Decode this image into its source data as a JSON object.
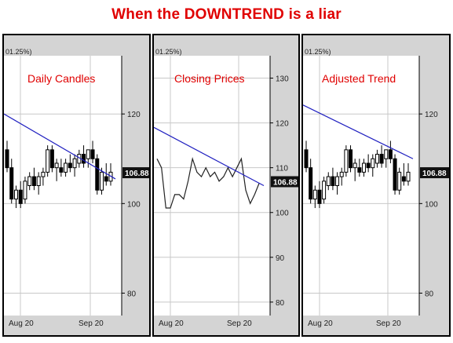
{
  "title": "When the DOWNTREND is a liar",
  "colors": {
    "title": "#e00000",
    "trendline": "#2020c0",
    "badge": "#111111"
  },
  "chart_data": [
    {
      "type": "candlestick",
      "title": "Daily Candles",
      "header": "01.25%)",
      "y_ticks": [
        120,
        100,
        80
      ],
      "ylim": [
        75,
        133
      ],
      "x_ticks": [
        "Aug 20",
        "Sep 20"
      ],
      "last_price": "106.88",
      "trendline": {
        "from": 120,
        "to": 105.5
      },
      "candles": [
        {
          "o": 112,
          "h": 114,
          "l": 107,
          "c": 108
        },
        {
          "o": 108,
          "h": 110,
          "l": 100,
          "c": 101
        },
        {
          "o": 101,
          "h": 104,
          "l": 99,
          "c": 103
        },
        {
          "o": 103,
          "h": 105,
          "l": 99,
          "c": 100
        },
        {
          "o": 101,
          "h": 106,
          "l": 100,
          "c": 105
        },
        {
          "o": 104,
          "h": 107,
          "l": 103,
          "c": 106
        },
        {
          "o": 106,
          "h": 108,
          "l": 103,
          "c": 104
        },
        {
          "o": 104,
          "h": 107,
          "l": 102,
          "c": 106
        },
        {
          "o": 106,
          "h": 108,
          "l": 104,
          "c": 107
        },
        {
          "o": 107,
          "h": 113,
          "l": 106,
          "c": 112
        },
        {
          "o": 112,
          "h": 113,
          "l": 107,
          "c": 108
        },
        {
          "o": 108,
          "h": 110,
          "l": 105,
          "c": 109
        },
        {
          "o": 108,
          "h": 110,
          "l": 106,
          "c": 107
        },
        {
          "o": 107,
          "h": 110,
          "l": 106,
          "c": 109
        },
        {
          "o": 109,
          "h": 111,
          "l": 107,
          "c": 108
        },
        {
          "o": 108,
          "h": 111,
          "l": 106,
          "c": 110
        },
        {
          "o": 109,
          "h": 112,
          "l": 108,
          "c": 111
        },
        {
          "o": 111,
          "h": 113,
          "l": 108,
          "c": 109
        },
        {
          "o": 110,
          "h": 112,
          "l": 108,
          "c": 112
        },
        {
          "o": 112,
          "h": 114,
          "l": 109,
          "c": 110
        },
        {
          "o": 110,
          "h": 111,
          "l": 102,
          "c": 103
        },
        {
          "o": 103,
          "h": 108,
          "l": 102,
          "c": 107
        },
        {
          "o": 106,
          "h": 109,
          "l": 104,
          "c": 105
        },
        {
          "o": 105,
          "h": 109,
          "l": 104,
          "c": 107
        }
      ]
    },
    {
      "type": "line",
      "title": "Closing Prices",
      "header": "01.25%)",
      "y_ticks": [
        130,
        120,
        110,
        100,
        90,
        80
      ],
      "ylim": [
        77,
        135
      ],
      "x_ticks": [
        "Aug 20",
        "Sep 20"
      ],
      "last_price": "106.88",
      "trendline": {
        "from": 119,
        "to": 106
      },
      "values": [
        112,
        110,
        101,
        101,
        104,
        104,
        103,
        107,
        112,
        109,
        108,
        110,
        108,
        109,
        107,
        108,
        110,
        108,
        110,
        112,
        105,
        102,
        104,
        106.5
      ]
    },
    {
      "type": "candlestick",
      "title": "Adjusted Trend",
      "header": "01.25%)",
      "y_ticks": [
        120,
        100,
        80
      ],
      "ylim": [
        75,
        133
      ],
      "x_ticks": [
        "Aug 20",
        "Sep 20"
      ],
      "last_price": "106.88",
      "trendline": {
        "from": 122,
        "to": 110
      },
      "candles": [
        {
          "o": 112,
          "h": 114,
          "l": 107,
          "c": 108
        },
        {
          "o": 108,
          "h": 110,
          "l": 100,
          "c": 101
        },
        {
          "o": 101,
          "h": 104,
          "l": 99,
          "c": 103
        },
        {
          "o": 103,
          "h": 105,
          "l": 99,
          "c": 100
        },
        {
          "o": 101,
          "h": 106,
          "l": 100,
          "c": 105
        },
        {
          "o": 104,
          "h": 107,
          "l": 103,
          "c": 106
        },
        {
          "o": 106,
          "h": 108,
          "l": 103,
          "c": 104
        },
        {
          "o": 104,
          "h": 107,
          "l": 102,
          "c": 106
        },
        {
          "o": 106,
          "h": 108,
          "l": 104,
          "c": 107
        },
        {
          "o": 107,
          "h": 113,
          "l": 106,
          "c": 112
        },
        {
          "o": 112,
          "h": 113,
          "l": 107,
          "c": 108
        },
        {
          "o": 108,
          "h": 110,
          "l": 105,
          "c": 109
        },
        {
          "o": 108,
          "h": 110,
          "l": 106,
          "c": 107
        },
        {
          "o": 107,
          "h": 110,
          "l": 106,
          "c": 109
        },
        {
          "o": 109,
          "h": 111,
          "l": 107,
          "c": 108
        },
        {
          "o": 108,
          "h": 111,
          "l": 106,
          "c": 110
        },
        {
          "o": 109,
          "h": 112,
          "l": 108,
          "c": 111
        },
        {
          "o": 111,
          "h": 113,
          "l": 108,
          "c": 109
        },
        {
          "o": 110,
          "h": 112,
          "l": 108,
          "c": 112
        },
        {
          "o": 112,
          "h": 114,
          "l": 109,
          "c": 110
        },
        {
          "o": 110,
          "h": 111,
          "l": 102,
          "c": 103
        },
        {
          "o": 103,
          "h": 108,
          "l": 102,
          "c": 107
        },
        {
          "o": 106,
          "h": 109,
          "l": 104,
          "c": 105
        },
        {
          "o": 105,
          "h": 109,
          "l": 104,
          "c": 107
        }
      ]
    }
  ]
}
